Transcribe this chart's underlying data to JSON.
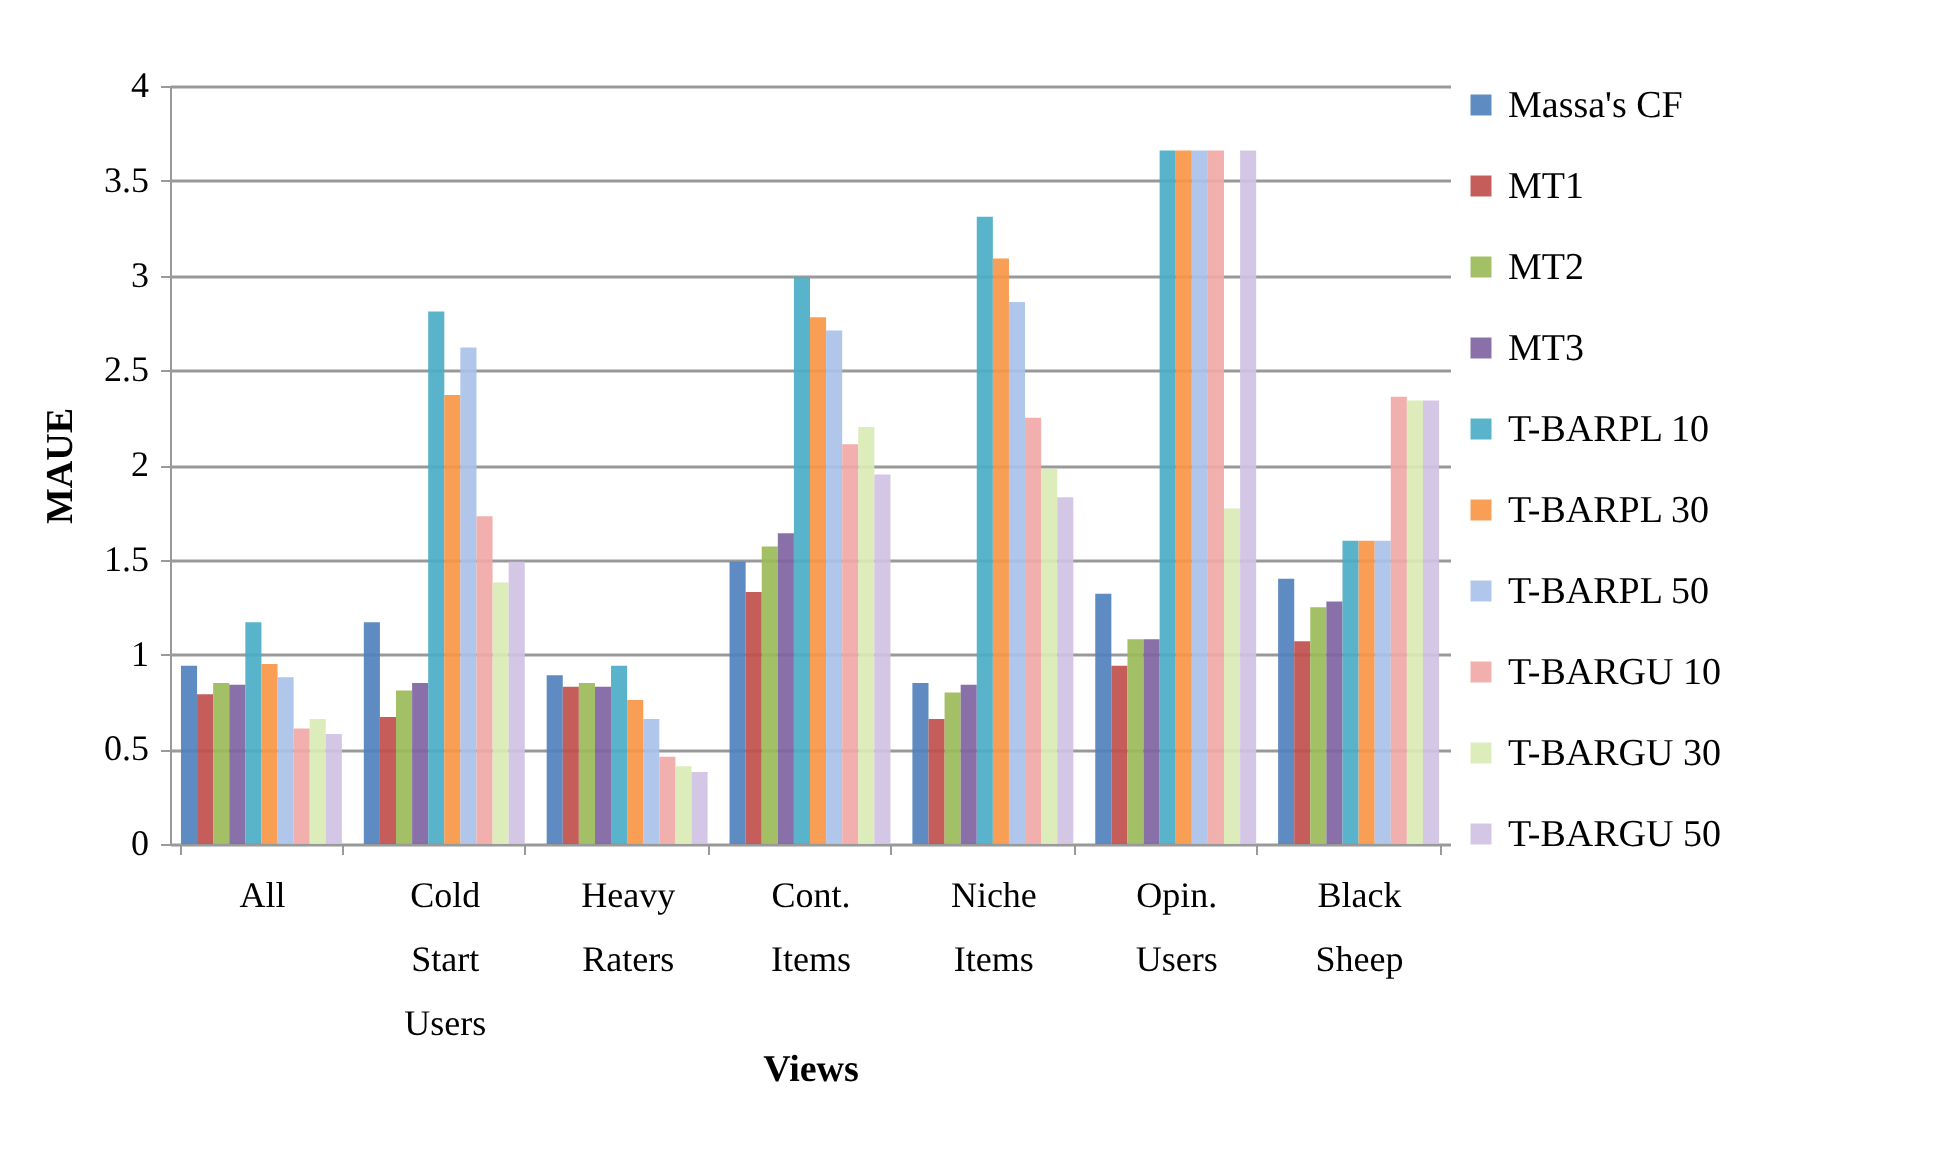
{
  "chart_data": {
    "type": "bar",
    "xlabel": "Views",
    "ylabel": "MAUE",
    "categories": [
      "All",
      "Cold Start Users",
      "Heavy Raters",
      "Cont. Items",
      "Niche Items",
      "Opin. Users",
      "Black Sheep"
    ],
    "ylim": [
      0,
      4
    ],
    "yticks": [
      0,
      0.5,
      1,
      1.5,
      2,
      2.5,
      3,
      3.5,
      4
    ],
    "grid": "y",
    "legend": "right",
    "series": [
      {
        "name": "Massa's CF",
        "color": "#4f81bd",
        "values": [
          0.94,
          1.17,
          0.89,
          1.49,
          0.85,
          1.32,
          1.4
        ]
      },
      {
        "name": "MT1",
        "color": "#c0504d",
        "values": [
          0.79,
          0.67,
          0.83,
          1.33,
          0.66,
          0.94,
          1.07
        ]
      },
      {
        "name": "MT2",
        "color": "#9bbb59",
        "values": [
          0.85,
          0.81,
          0.85,
          1.57,
          0.8,
          1.08,
          1.25
        ]
      },
      {
        "name": "MT3",
        "color": "#8064a2",
        "values": [
          0.84,
          0.85,
          0.83,
          1.64,
          0.84,
          1.08,
          1.28
        ]
      },
      {
        "name": "T-BARPL 10",
        "color": "#4bacc6",
        "values": [
          1.17,
          2.81,
          0.94,
          2.99,
          3.31,
          3.66,
          1.6
        ]
      },
      {
        "name": "T-BARPL 30",
        "color": "#f79646",
        "values": [
          0.95,
          2.37,
          0.76,
          2.78,
          3.09,
          3.66,
          1.6
        ]
      },
      {
        "name": "T-BARPL 50",
        "color": "#a9c1e8",
        "values": [
          0.88,
          2.62,
          0.66,
          2.71,
          2.86,
          3.66,
          1.6
        ]
      },
      {
        "name": "T-BARGU 10",
        "color": "#f0a9a7",
        "values": [
          0.61,
          1.73,
          0.46,
          2.11,
          2.25,
          3.66,
          2.36
        ]
      },
      {
        "name": "T-BARGU 30",
        "color": "#d9eab4",
        "values": [
          0.66,
          1.38,
          0.41,
          2.2,
          1.98,
          1.77,
          2.34
        ]
      },
      {
        "name": "T-BARGU 50",
        "color": "#d0c2e4",
        "values": [
          0.58,
          1.49,
          0.38,
          1.95,
          1.83,
          3.66,
          2.34
        ]
      }
    ]
  }
}
